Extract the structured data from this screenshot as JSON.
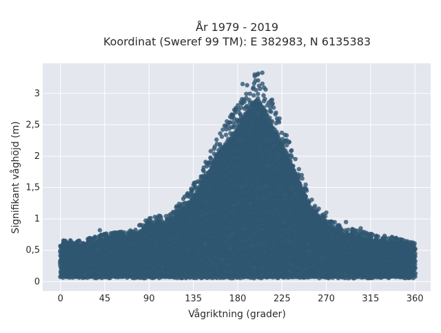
{
  "chart_data": {
    "type": "scatter",
    "title_line1": "År 1979 - 2019",
    "title_line2": "Koordinat (Sweref 99 TM): E 382983, N 6135383",
    "xlabel": "Vågriktning (grader)",
    "ylabel": "Signifikant våghöjd (m)",
    "xlim": [
      -18,
      376
    ],
    "ylim": [
      -0.15,
      3.48
    ],
    "x_ticks": [
      0,
      45,
      90,
      135,
      180,
      225,
      270,
      315,
      360
    ],
    "x_tick_labels": [
      "0",
      "45",
      "90",
      "135",
      "180",
      "225",
      "270",
      "315",
      "360"
    ],
    "y_ticks": [
      0,
      0.5,
      1,
      1.5,
      2,
      2.5,
      3
    ],
    "y_tick_labels": [
      "0",
      "0,5",
      "1",
      "1,5",
      "2",
      "2,5",
      "3"
    ],
    "grid": true,
    "marker_color": "#2f5670",
    "plot_background": "#e5e7ef",
    "envelope": {
      "x": [
        0,
        20,
        45,
        70,
        90,
        110,
        130,
        145,
        160,
        175,
        190,
        200,
        210,
        225,
        240,
        255,
        270,
        290,
        315,
        340,
        360
      ],
      "y_max": [
        0.65,
        0.65,
        0.75,
        0.8,
        1.0,
        1.05,
        1.4,
        1.8,
        2.3,
        2.65,
        3.1,
        3.3,
        3.0,
        2.5,
        1.9,
        1.3,
        1.0,
        0.85,
        0.75,
        0.7,
        0.6
      ]
    },
    "sample_points": [
      {
        "x": 200,
        "y": 3.3
      },
      {
        "x": 205,
        "y": 3.33
      },
      {
        "x": 198,
        "y": 3.2
      },
      {
        "x": 185,
        "y": 3.15
      },
      {
        "x": 178,
        "y": 2.75
      },
      {
        "x": 170,
        "y": 2.5
      },
      {
        "x": 215,
        "y": 2.9
      },
      {
        "x": 220,
        "y": 2.6
      },
      {
        "x": 245,
        "y": 1.7
      },
      {
        "x": 250,
        "y": 1.45
      },
      {
        "x": 100,
        "y": 1.05
      },
      {
        "x": 72,
        "y": 0.8
      },
      {
        "x": 40,
        "y": 0.82
      },
      {
        "x": 5,
        "y": 0.65
      },
      {
        "x": 305,
        "y": 0.85
      },
      {
        "x": 330,
        "y": 0.7
      },
      {
        "x": 358,
        "y": 0.55
      },
      {
        "x": 290,
        "y": 0.95
      },
      {
        "x": 270,
        "y": 1.1
      },
      {
        "x": 140,
        "y": 1.5
      }
    ],
    "n_points": 100000
  }
}
